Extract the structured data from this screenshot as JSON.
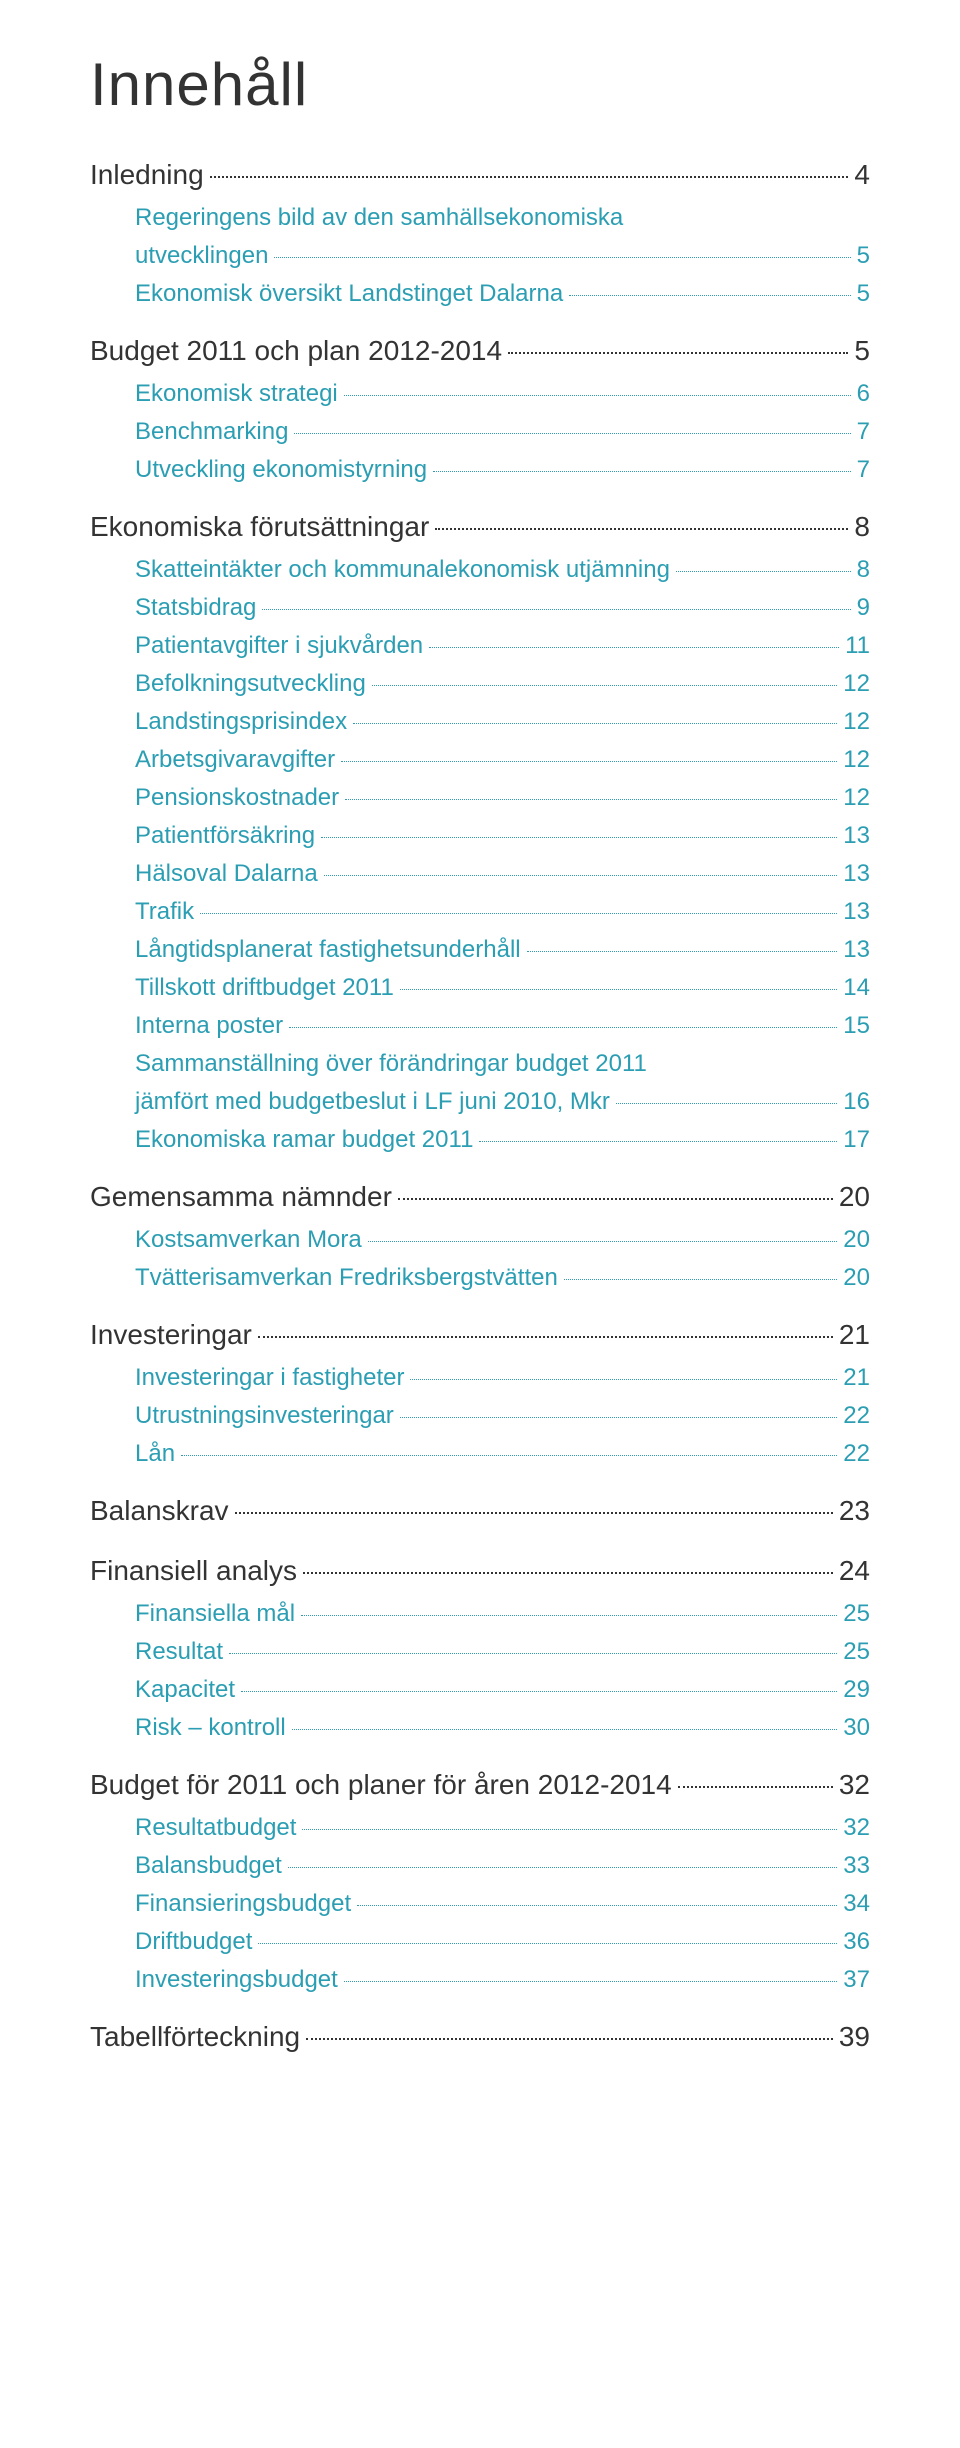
{
  "title": "Innehåll",
  "colors": {
    "h1": "#333333",
    "h2": "#2b9eb3",
    "background": "#ffffff"
  },
  "typography": {
    "title_fontsize": 60,
    "h1_fontsize": 28,
    "h2_fontsize": 24,
    "font_family": "Arial"
  },
  "toc": [
    {
      "level": 1,
      "label": "Inledning",
      "page": "4"
    },
    {
      "level": 2,
      "label": "Regeringens bild av den samhällsekonomiska utvecklingen",
      "page": "5"
    },
    {
      "level": 2,
      "label": "Ekonomisk översikt Landstinget Dalarna",
      "page": "5"
    },
    {
      "level": 1,
      "label": "Budget 2011 och plan 2012-2014",
      "page": "5"
    },
    {
      "level": 2,
      "label": "Ekonomisk strategi",
      "page": "6"
    },
    {
      "level": 2,
      "label": "Benchmarking",
      "page": "7"
    },
    {
      "level": 2,
      "label": "Utveckling ekonomistyrning",
      "page": "7"
    },
    {
      "level": 1,
      "label": "Ekonomiska förutsättningar",
      "page": "8"
    },
    {
      "level": 2,
      "label": "Skatteintäkter och kommunalekonomisk utjämning",
      "page": "8"
    },
    {
      "level": 2,
      "label": "Statsbidrag",
      "page": "9"
    },
    {
      "level": 2,
      "label": "Patientavgifter i sjukvården",
      "page": "11"
    },
    {
      "level": 2,
      "label": "Befolkningsutveckling",
      "page": "12"
    },
    {
      "level": 2,
      "label": "Landstingsprisindex",
      "page": "12"
    },
    {
      "level": 2,
      "label": "Arbetsgivaravgifter",
      "page": "12"
    },
    {
      "level": 2,
      "label": "Pensionskostnader",
      "page": "12"
    },
    {
      "level": 2,
      "label": "Patientförsäkring",
      "page": "13"
    },
    {
      "level": 2,
      "label": "Hälsoval Dalarna",
      "page": "13"
    },
    {
      "level": 2,
      "label": "Trafik",
      "page": "13"
    },
    {
      "level": 2,
      "label": "Långtidsplanerat fastighetsunderhåll",
      "page": "13"
    },
    {
      "level": 2,
      "label": "Tillskott driftbudget 2011",
      "page": "14"
    },
    {
      "level": 2,
      "label": "Interna poster",
      "page": "15"
    },
    {
      "level": 2,
      "label": "Sammanställning över förändringar budget 2011 jämfört med budgetbeslut i LF juni 2010, Mkr",
      "page": "16"
    },
    {
      "level": 2,
      "label": "Ekonomiska ramar budget 2011",
      "page": "17"
    },
    {
      "level": 1,
      "label": "Gemensamma nämnder",
      "page": "20"
    },
    {
      "level": 2,
      "label": "Kostsamverkan Mora",
      "page": "20"
    },
    {
      "level": 2,
      "label": "Tvätterisamverkan Fredriksbergstvätten",
      "page": "20"
    },
    {
      "level": 1,
      "label": "Investeringar",
      "page": "21"
    },
    {
      "level": 2,
      "label": "Investeringar i fastigheter",
      "page": "21"
    },
    {
      "level": 2,
      "label": "Utrustningsinvesteringar",
      "page": "22"
    },
    {
      "level": 2,
      "label": "Lån",
      "page": "22"
    },
    {
      "level": 1,
      "label": "Balanskrav",
      "page": "23"
    },
    {
      "level": 1,
      "label": "Finansiell analys",
      "page": "24"
    },
    {
      "level": 2,
      "label": "Finansiella mål",
      "page": "25"
    },
    {
      "level": 2,
      "label": "Resultat",
      "page": "25"
    },
    {
      "level": 2,
      "label": "Kapacitet",
      "page": "29"
    },
    {
      "level": 2,
      "label": "Risk – kontroll",
      "page": "30"
    },
    {
      "level": 1,
      "label": "Budget för 2011 och planer för åren 2012-2014",
      "page": "32"
    },
    {
      "level": 2,
      "label": "Resultatbudget",
      "page": "32"
    },
    {
      "level": 2,
      "label": "Balansbudget",
      "page": "33"
    },
    {
      "level": 2,
      "label": "Finansieringsbudget",
      "page": "34"
    },
    {
      "level": 2,
      "label": "Driftbudget",
      "page": "36"
    },
    {
      "level": 2,
      "label": "Investeringsbudget",
      "page": "37"
    },
    {
      "level": 1,
      "label": "Tabellförteckning",
      "page": "39"
    }
  ]
}
